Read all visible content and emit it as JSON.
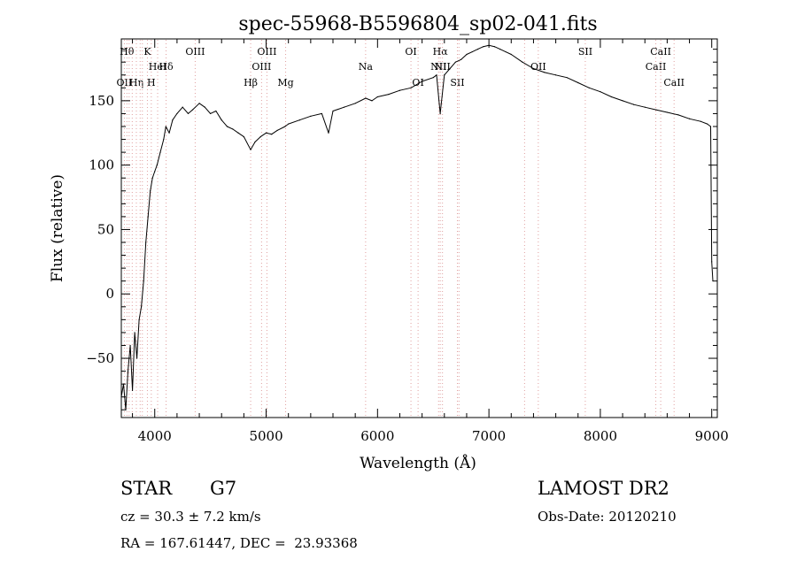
{
  "chart_data": {
    "type": "line",
    "title": "spec-55968-B5596804_sp02-041.fits",
    "xlabel": "Wavelength (Å)",
    "ylabel": "Flux (relative)",
    "xlim": [
      3700,
      9050
    ],
    "ylim": [
      -96,
      198
    ],
    "x_ticks": [
      4000,
      5000,
      6000,
      7000,
      8000,
      9000
    ],
    "y_ticks": [
      -50,
      0,
      50,
      100,
      150
    ],
    "grid": false,
    "line_color": "#000000",
    "marker_color": "#e0a0a0",
    "series": [
      {
        "x": [
          3700,
          3720,
          3740,
          3760,
          3780,
          3800,
          3820,
          3840,
          3860,
          3880,
          3900,
          3920,
          3940,
          3960,
          3980,
          4000,
          4020,
          4050,
          4080,
          4100,
          4130,
          4160,
          4200,
          4250,
          4300,
          4340,
          4400,
          4450,
          4500,
          4550,
          4600,
          4650,
          4700,
          4750,
          4800,
          4861,
          4900,
          4950,
          5000,
          5050,
          5100,
          5170,
          5200,
          5300,
          5400,
          5500,
          5560,
          5600,
          5700,
          5800,
          5893,
          5950,
          6000,
          6100,
          6200,
          6300,
          6400,
          6500,
          6530,
          6563,
          6600,
          6650,
          6700,
          6750,
          6800,
          6850,
          6900,
          6950,
          7000,
          7050,
          7100,
          7150,
          7200,
          7300,
          7400,
          7500,
          7600,
          7700,
          7800,
          7900,
          8000,
          8100,
          8200,
          8300,
          8400,
          8500,
          8600,
          8700,
          8800,
          8900,
          8960,
          8990,
          9000,
          9010
        ],
        "y": [
          -80,
          -70,
          -90,
          -60,
          -40,
          -75,
          -30,
          -50,
          -20,
          -10,
          10,
          40,
          60,
          80,
          90,
          95,
          100,
          110,
          120,
          130,
          125,
          135,
          140,
          145,
          140,
          143,
          148,
          145,
          140,
          142,
          135,
          130,
          128,
          125,
          122,
          112,
          118,
          122,
          125,
          124,
          127,
          130,
          132,
          135,
          138,
          140,
          125,
          142,
          145,
          148,
          152,
          150,
          153,
          155,
          158,
          160,
          165,
          168,
          170,
          140,
          170,
          175,
          180,
          182,
          186,
          188,
          190,
          192,
          193,
          192,
          190,
          188,
          186,
          180,
          175,
          172,
          170,
          168,
          164,
          160,
          157,
          153,
          150,
          147,
          145,
          143,
          141,
          139,
          136,
          134,
          132,
          130,
          25,
          10
        ]
      }
    ],
    "line_markers": [
      {
        "x": 3727,
        "label": "OII",
        "row": 3
      },
      {
        "x": 3750,
        "label": "Hθ",
        "row": 1
      },
      {
        "x": 3770,
        "label": "",
        "row": 0
      },
      {
        "x": 3798,
        "label": "",
        "row": 0
      },
      {
        "x": 3835,
        "label": "Hη",
        "row": 3
      },
      {
        "x": 3869,
        "label": "",
        "row": 0
      },
      {
        "x": 3889,
        "label": "",
        "row": 0
      },
      {
        "x": 3934,
        "label": "K",
        "row": 1
      },
      {
        "x": 3969,
        "label": "H",
        "row": 3
      },
      {
        "x": 4026,
        "label": "HeI",
        "row": 2
      },
      {
        "x": 4102,
        "label": "Hδ",
        "row": 2
      },
      {
        "x": 4363,
        "label": "OIII",
        "row": 1
      },
      {
        "x": 4861,
        "label": "Hβ",
        "row": 3
      },
      {
        "x": 4959,
        "label": "OIII",
        "row": 2
      },
      {
        "x": 5007,
        "label": "OIII",
        "row": 1
      },
      {
        "x": 5175,
        "label": "Mg",
        "row": 3
      },
      {
        "x": 5893,
        "label": "Na",
        "row": 2
      },
      {
        "x": 6300,
        "label": "OI",
        "row": 1
      },
      {
        "x": 6364,
        "label": "OI",
        "row": 3
      },
      {
        "x": 6548,
        "label": "NII",
        "row": 2
      },
      {
        "x": 6563,
        "label": "Hα",
        "row": 1
      },
      {
        "x": 6583,
        "label": "NII",
        "row": 2
      },
      {
        "x": 6717,
        "label": "SII",
        "row": 3
      },
      {
        "x": 6731,
        "label": "",
        "row": 0
      },
      {
        "x": 7320,
        "label": "",
        "row": 0
      },
      {
        "x": 7443,
        "label": "OII",
        "row": 2
      },
      {
        "x": 7865,
        "label": "SII",
        "row": 1
      },
      {
        "x": 8498,
        "label": "CaII",
        "row": 2
      },
      {
        "x": 8542,
        "label": "CaII",
        "row": 1
      },
      {
        "x": 8662,
        "label": "CaII",
        "row": 3
      }
    ]
  },
  "info": {
    "object_class": "STAR",
    "subclass": "G7",
    "survey": "LAMOST DR2",
    "redshift_line": "cz = 30.3 ± 7.2 km/s",
    "obs_date": "Obs-Date: 20120210",
    "coords": "RA = 167.61447, DEC =  23.93368"
  }
}
